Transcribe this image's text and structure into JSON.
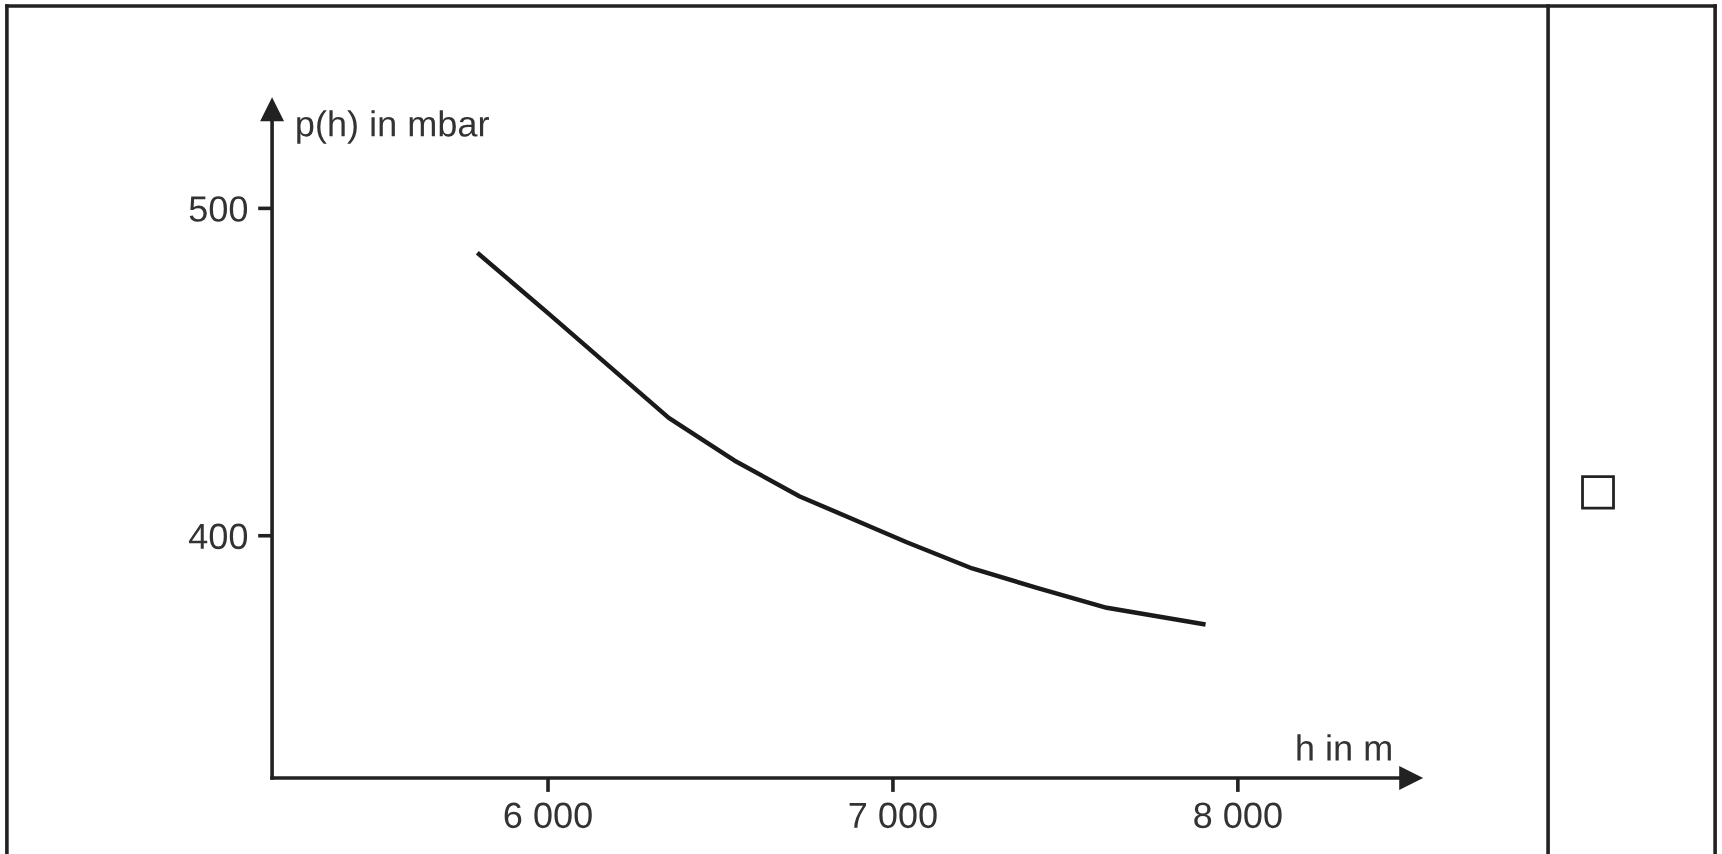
{
  "chart_data": {
    "type": "line",
    "xlabel": "h in m",
    "ylabel": "p(h) in mbar",
    "x": [
      5800,
      6000,
      6350,
      6540,
      6730,
      6930,
      7040,
      7230,
      7420,
      7620,
      7900
    ],
    "series": [
      {
        "color": "#1a1a1a",
        "values": [
          486,
          468,
          436,
          423,
          412,
          403,
          398,
          390,
          384,
          378,
          373
        ]
      }
    ],
    "xlim": [
      5200,
      8500
    ],
    "ylim": [
      326,
      530
    ],
    "xticks": [
      {
        "value": 6000,
        "label": "6 000"
      },
      {
        "value": 7000,
        "label": "7 000"
      },
      {
        "value": 8000,
        "label": "8 000"
      }
    ],
    "yticks": [
      400,
      500
    ],
    "grid": false,
    "legend": false,
    "marker": "none",
    "line_style": "solid"
  }
}
